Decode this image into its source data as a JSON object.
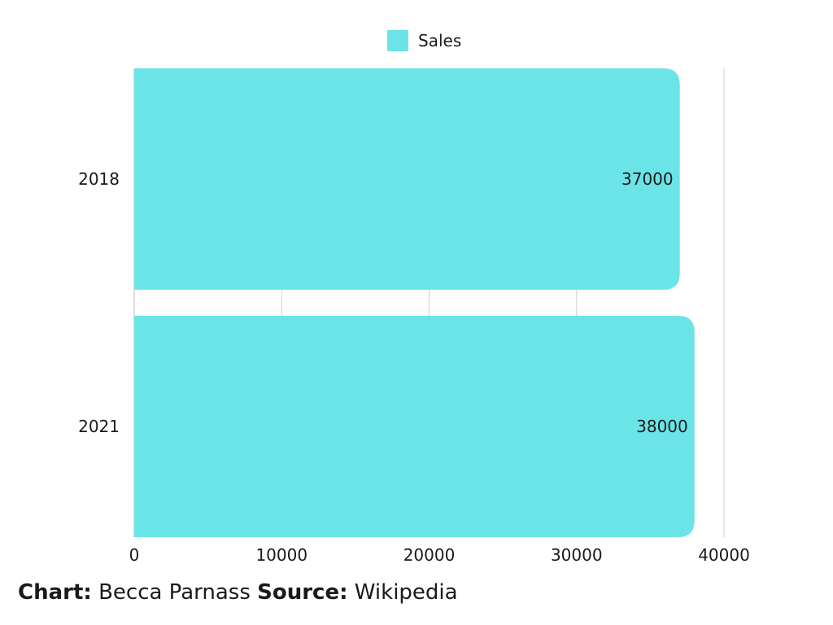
{
  "chart_data": {
    "type": "bar",
    "orientation": "horizontal",
    "categories": [
      "2018",
      "2021"
    ],
    "series": [
      {
        "name": "Sales",
        "values": [
          37000,
          38000
        ],
        "color": "#6ae4e6"
      }
    ],
    "data_labels": [
      "37000",
      "38000"
    ],
    "x_ticks": [
      0,
      10000,
      20000,
      30000,
      40000
    ],
    "xlim": [
      0,
      40000
    ],
    "grid": true,
    "legend_position": "top-center"
  },
  "legend": {
    "label": "Sales",
    "color": "#6ae4e6"
  },
  "footer": {
    "chart_key": "Chart:",
    "chart_value": "Becca Parnass",
    "source_key": "Source:",
    "source_value": "Wikipedia"
  }
}
